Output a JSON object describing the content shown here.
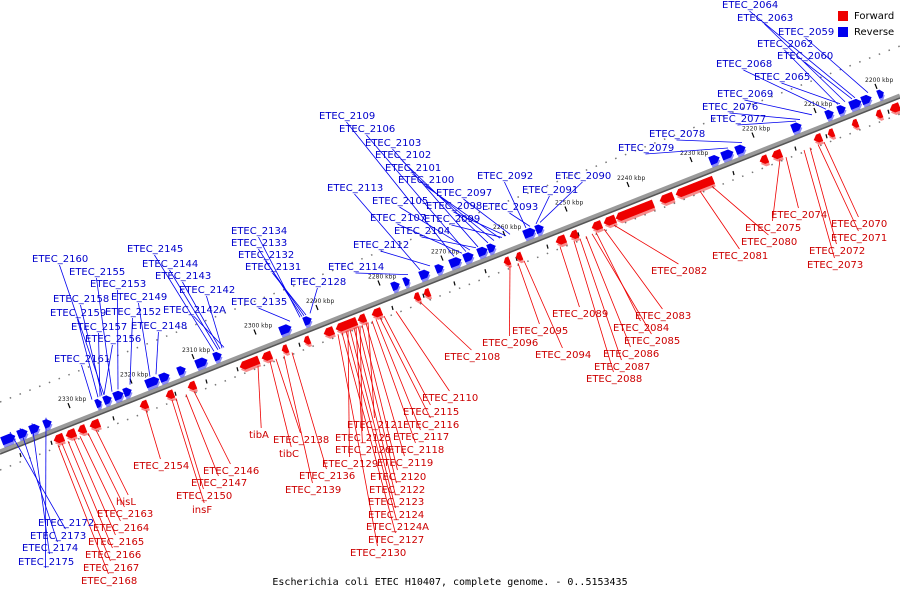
{
  "caption": "Escherichia coli ETEC H10407, complete genome. - 0..5153435",
  "colors": {
    "forward": "#ee0000",
    "reverse": "#0000ee",
    "axis": "#888888",
    "label_forward": "#cc0000",
    "label_reverse": "#0000cc"
  },
  "legend": [
    {
      "label": "Forward",
      "color": "#ee0000"
    },
    {
      "label": "Reverse",
      "color": "#0000ee"
    }
  ],
  "ticks": [
    "2200 kbp",
    "2210 kbp",
    "2220 kbp",
    "2230 kbp",
    "2240 kbp",
    "2250 kbp",
    "2260 kbp",
    "2270 kbp",
    "2280 kbp",
    "2290 kbp",
    "2300 kbp",
    "2310 kbp",
    "2320 kbp",
    "2330 kbp"
  ],
  "reverse_genes": [
    "ETEC_2064",
    "ETEC_2063",
    "ETEC_2059",
    "ETEC_2062",
    "ETEC_2060",
    "ETEC_2068",
    "ETEC_2065",
    "ETEC_2069",
    "ETEC_2076",
    "ETEC_2077",
    "ETEC_2078",
    "ETEC_2079",
    "ETEC_2109",
    "ETEC_2106",
    "ETEC_2103",
    "ETEC_2102",
    "ETEC_2101",
    "ETEC_2100",
    "ETEC_2097",
    "ETEC_2098",
    "ETEC_2099",
    "ETEC_2105",
    "ETEC_2107",
    "ETEC_2104",
    "ETEC_2113",
    "ETEC_2112",
    "ETEC_2114",
    "ETEC_2092",
    "ETEC_2090",
    "ETEC_2091",
    "ETEC_2093",
    "ETEC_2134",
    "ETEC_2133",
    "ETEC_2132",
    "ETEC_2131",
    "ETEC_2128",
    "ETEC_2135",
    "ETEC_2145",
    "ETEC_2144",
    "ETEC_2143",
    "ETEC_2142",
    "ETEC_2142A",
    "ETEC_2160",
    "ETEC_2155",
    "ETEC_2153",
    "ETEC_2158",
    "ETEC_2149",
    "ETEC_2159",
    "ETEC_2152",
    "ETEC_2148",
    "ETEC_2157",
    "ETEC_2156",
    "ETEC_2161",
    "ETEC_2172",
    "ETEC_2173",
    "ETEC_2174",
    "ETEC_2175"
  ],
  "forward_genes": [
    "ETEC_2074",
    "ETEC_2070",
    "ETEC_2075",
    "ETEC_2071",
    "ETEC_2072",
    "ETEC_2073",
    "ETEC_2080",
    "ETEC_2081",
    "ETEC_2082",
    "ETEC_2083",
    "ETEC_2084",
    "ETEC_2085",
    "ETEC_2086",
    "ETEC_2087",
    "ETEC_2088",
    "ETEC_2089",
    "ETEC_2096",
    "ETEC_2095",
    "ETEC_2094",
    "ETEC_2108",
    "ETEC_2110",
    "ETEC_2115",
    "ETEC_2116",
    "ETEC_2117",
    "ETEC_2118",
    "ETEC_2119",
    "ETEC_2120",
    "ETEC_2121",
    "ETEC_2122",
    "ETEC_2123",
    "ETEC_2124",
    "ETEC_2124A",
    "ETEC_2125",
    "ETEC_2126",
    "ETEC_2127",
    "ETEC_2129",
    "ETEC_2130",
    "ETEC_2136",
    "ETEC_2138",
    "ETEC_2139",
    "tibA",
    "tibC",
    "ETEC_2146",
    "ETEC_2147",
    "ETEC_2150",
    "insF",
    "ETEC_2154",
    "hisL",
    "ETEC_2163",
    "ETEC_2164",
    "ETEC_2165",
    "ETEC_2166",
    "ETEC_2167",
    "ETEC_2168"
  ]
}
